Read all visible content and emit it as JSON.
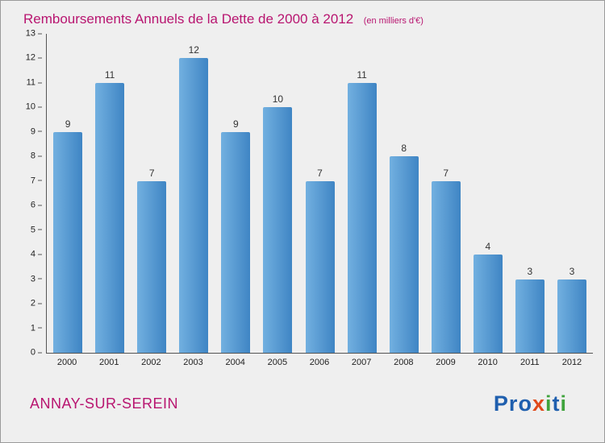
{
  "chart_data": {
    "type": "bar",
    "title": "Remboursements Annuels de la Dette de 2000 à 2012",
    "subtitle": "(en milliers d'€)",
    "categories": [
      "2000",
      "2001",
      "2002",
      "2003",
      "2004",
      "2005",
      "2006",
      "2007",
      "2008",
      "2009",
      "2010",
      "2011",
      "2012"
    ],
    "values": [
      9,
      11,
      7,
      12,
      9,
      10,
      7,
      11,
      8,
      7,
      4,
      3,
      3
    ],
    "xlabel": "",
    "ylabel": "",
    "ylim": [
      0,
      13
    ],
    "yticks": [
      0,
      1,
      2,
      3,
      4,
      5,
      6,
      7,
      8,
      9,
      10,
      11,
      12,
      13
    ],
    "grid": false,
    "legend": "none"
  },
  "footer": {
    "commune": "ANNAY-SUR-SEREIN",
    "logo": {
      "text": "Proxiti",
      "letters": [
        {
          "ch": "P",
          "color": "#1f5fae"
        },
        {
          "ch": "r",
          "color": "#1f5fae"
        },
        {
          "ch": "o",
          "color": "#1f5fae"
        },
        {
          "ch": "x",
          "color": "#e0491a"
        },
        {
          "ch": "i",
          "color": "#3fa33c"
        },
        {
          "ch": "t",
          "color": "#1f5fae"
        },
        {
          "ch": "i",
          "color": "#3fa33c"
        }
      ]
    }
  },
  "colors": {
    "title": "#b81570",
    "background": "#efefef",
    "bar_top": "#72b0e0",
    "bar_bottom": "#3f85c4",
    "axis": "#555555",
    "value_label": "#333333"
  }
}
